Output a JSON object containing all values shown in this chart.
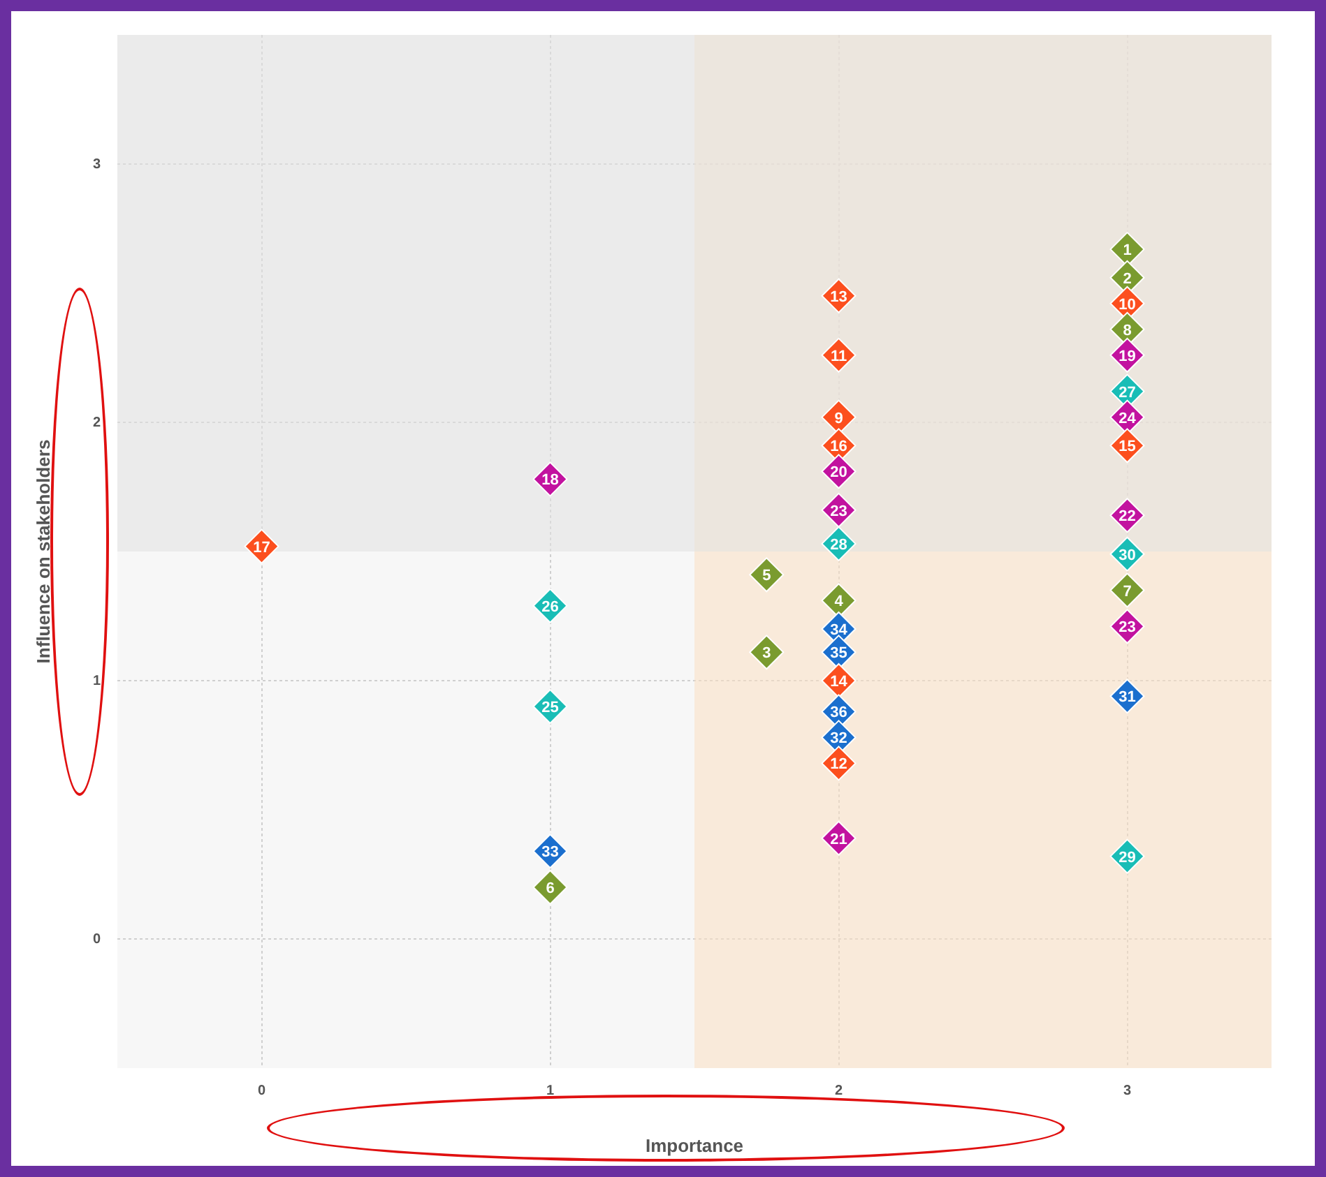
{
  "chart_data": {
    "type": "scatter",
    "xlabel": "Importance",
    "ylabel": "Influence on stakeholders",
    "xlim": [
      -0.5,
      3.5
    ],
    "ylim": [
      -0.5,
      3.5
    ],
    "xticks": [
      0,
      1,
      2,
      3
    ],
    "yticks": [
      0,
      1,
      2,
      3
    ],
    "grid": true,
    "marker": "diamond",
    "bands": [
      {
        "axis": "x",
        "from": 1.5,
        "to": 3.5,
        "color": "#fbe0c2"
      },
      {
        "axis": "y",
        "from": 1.5,
        "to": 3.5,
        "color": "#e2e2e2"
      }
    ],
    "series": [
      {
        "x": [
          0,
          1,
          1,
          1,
          1,
          1,
          1.75,
          1.75,
          2,
          2,
          2,
          2,
          2,
          2,
          2,
          2,
          2,
          2,
          2,
          2,
          2,
          2,
          2,
          3,
          3,
          3,
          3,
          3,
          3,
          3,
          3,
          3,
          3,
          3,
          3,
          3,
          3
        ],
        "values": [
          1.52,
          1.78,
          1.29,
          0.9,
          0.34,
          0.2,
          1.41,
          1.11,
          2.49,
          2.26,
          2.02,
          1.91,
          1.81,
          1.66,
          1.53,
          1.31,
          1.2,
          1.11,
          1.0,
          0.88,
          0.78,
          0.68,
          0.39,
          2.67,
          2.56,
          2.46,
          2.36,
          2.26,
          2.12,
          2.02,
          1.91,
          1.64,
          1.49,
          1.35,
          1.21,
          0.94,
          0.32
        ],
        "colors": [
          "#fc4f1e",
          "#c2129f",
          "#19bdb6",
          "#19bdb6",
          "#1b6fce",
          "#7a9b2f",
          "#7a9b2f",
          "#7a9b2f",
          "#fc4f1e",
          "#fc4f1e",
          "#fc4f1e",
          "#fc4f1e",
          "#c2129f",
          "#c2129f",
          "#19bdb6",
          "#7a9b2f",
          "#1b6fce",
          "#1b6fce",
          "#fc4f1e",
          "#1b6fce",
          "#1b6fce",
          "#fc4f1e",
          "#c2129f",
          "#7a9b2f",
          "#7a9b2f",
          "#fc4f1e",
          "#7a9b2f",
          "#c2129f",
          "#19bdb6",
          "#c2129f",
          "#fc4f1e",
          "#c2129f",
          "#19bdb6",
          "#7a9b2f",
          "#c2129f",
          "#1b6fce",
          "#19bdb6"
        ]
      }
    ],
    "annotations": [
      {
        "text": "17",
        "x": 0,
        "y": 1.52
      },
      {
        "text": "18",
        "x": 1,
        "y": 1.78
      },
      {
        "text": "26",
        "x": 1,
        "y": 1.29
      },
      {
        "text": "25",
        "x": 1,
        "y": 0.9
      },
      {
        "text": "33",
        "x": 1,
        "y": 0.34
      },
      {
        "text": "6",
        "x": 1,
        "y": 0.2
      },
      {
        "text": "5",
        "x": 1.75,
        "y": 1.41
      },
      {
        "text": "3",
        "x": 1.75,
        "y": 1.11
      },
      {
        "text": "13",
        "x": 2,
        "y": 2.49
      },
      {
        "text": "11",
        "x": 2,
        "y": 2.26
      },
      {
        "text": "9",
        "x": 2,
        "y": 2.02
      },
      {
        "text": "16",
        "x": 2,
        "y": 1.91
      },
      {
        "text": "20",
        "x": 2,
        "y": 1.81
      },
      {
        "text": "23",
        "x": 2,
        "y": 1.66
      },
      {
        "text": "28",
        "x": 2,
        "y": 1.53
      },
      {
        "text": "4",
        "x": 2,
        "y": 1.31
      },
      {
        "text": "34",
        "x": 2,
        "y": 1.2
      },
      {
        "text": "35",
        "x": 2,
        "y": 1.11
      },
      {
        "text": "14",
        "x": 2,
        "y": 1.0
      },
      {
        "text": "36",
        "x": 2,
        "y": 0.88
      },
      {
        "text": "32",
        "x": 2,
        "y": 0.78
      },
      {
        "text": "12",
        "x": 2,
        "y": 0.68
      },
      {
        "text": "21",
        "x": 2,
        "y": 0.39
      },
      {
        "text": "1",
        "x": 3,
        "y": 2.67
      },
      {
        "text": "2",
        "x": 3,
        "y": 2.56
      },
      {
        "text": "10",
        "x": 3,
        "y": 2.46
      },
      {
        "text": "8",
        "x": 3,
        "y": 2.36
      },
      {
        "text": "19",
        "x": 3,
        "y": 2.26
      },
      {
        "text": "27",
        "x": 3,
        "y": 2.12
      },
      {
        "text": "24",
        "x": 3,
        "y": 2.02
      },
      {
        "text": "15",
        "x": 3,
        "y": 1.91
      },
      {
        "text": "22",
        "x": 3,
        "y": 1.64
      },
      {
        "text": "30",
        "x": 3,
        "y": 1.49
      },
      {
        "text": "7",
        "x": 3,
        "y": 1.35
      },
      {
        "text": "23",
        "x": 3,
        "y": 1.21
      },
      {
        "text": "31",
        "x": 3,
        "y": 0.94
      },
      {
        "text": "29",
        "x": 3,
        "y": 0.32
      }
    ]
  }
}
